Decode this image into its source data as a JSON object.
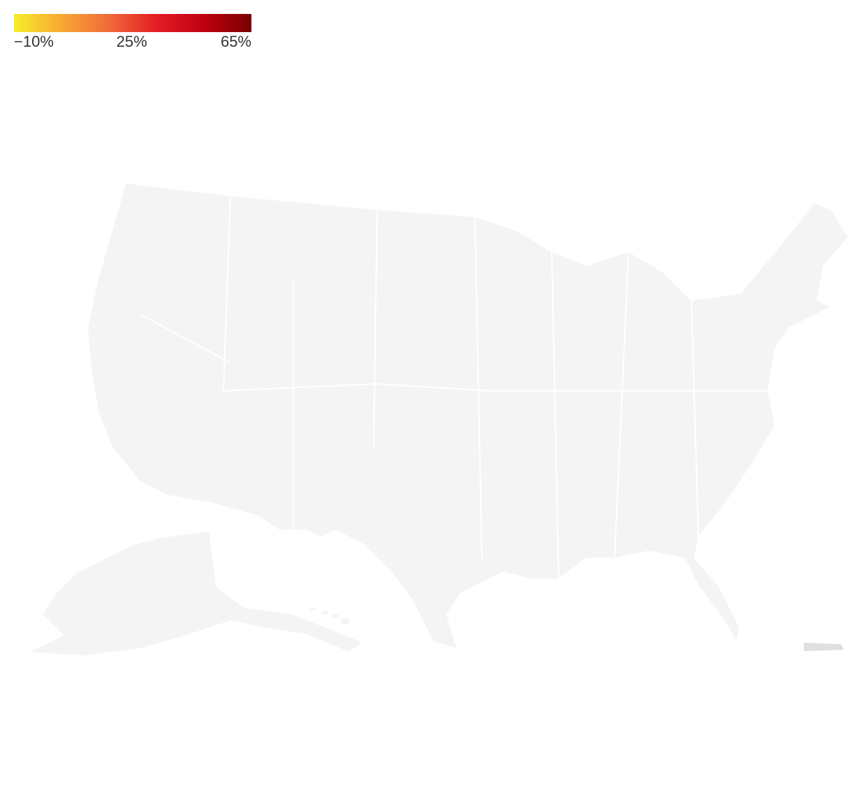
{
  "legend": {
    "range": [
      -10,
      65
    ],
    "colors": [
      "#f7ee2a",
      "#f7a832",
      "#f06a3a",
      "#e41d24",
      "#c00010",
      "#7a0000"
    ],
    "ticks": [
      {
        "value": -10,
        "label": "−10%"
      },
      {
        "value": 25,
        "label": "25%"
      },
      {
        "value": 65,
        "label": "65%"
      }
    ]
  }
}
